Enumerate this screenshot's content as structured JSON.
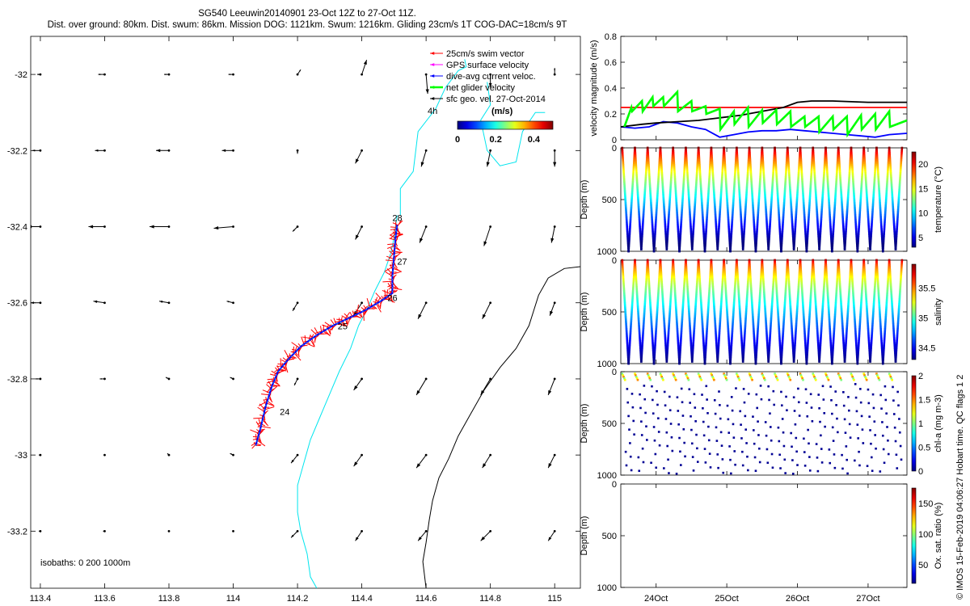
{
  "title": {
    "line1": "SG540 Leeuwin20140901 23-Oct 12Z to 27-Oct 11Z.",
    "line2": "Dist. over ground: 80km. Dist. swum: 86km. Mission DOG: 1121km. Swum: 1216km. Gliding 23cm/s 1T COG-DAC=18cm/s 9T"
  },
  "footer": "© IMOS 15-Feb-2019 04:06:27 Hobart time. QC flags 1  2",
  "colors": {
    "coast": "#00e5ee",
    "isobath": "#000000",
    "swim": "#ff0000",
    "gps": "#ff00ff",
    "dac": "#0000ff",
    "net": "#00ff00",
    "geo": "#000000"
  },
  "chart_data": [
    {
      "type": "scatter",
      "name": "map",
      "xlim": [
        113.37,
        115.08
      ],
      "ylim": [
        -33.35,
        -31.9
      ],
      "x_ticks": [
        113.4,
        113.6,
        113.8,
        114,
        114.2,
        114.4,
        114.6,
        114.8,
        115
      ],
      "x_tick_labels": [
        "113.4",
        "113.6",
        "113.8",
        "114",
        "114.2",
        "114.4",
        "114.6",
        "114.8",
        "115"
      ],
      "y_ticks": [
        -32,
        -32.2,
        -32.4,
        -32.6,
        -32.8,
        -33,
        -33.2
      ],
      "y_tick_labels": [
        "-32",
        "-32.2",
        "-32.4",
        "-32.6",
        "-32.8",
        "-33",
        "-33.2"
      ],
      "legend": {
        "position": "top-right",
        "entries": [
          "25cm/s swim vector",
          "GPS surface velocity",
          "dive-avg current veloc.",
          "net glider velocity",
          "sfc geo. vel. 27-Oct-2014"
        ]
      },
      "colorbar": {
        "time_label": "4h",
        "unit": "(m/s)",
        "ticks": [
          "0",
          "0.2",
          "0.4"
        ],
        "range": [
          0,
          0.5
        ]
      },
      "isobath_label": "isobaths: 0   200  1000m",
      "track": [
        [
          114.07,
          -32.975
        ],
        [
          114.085,
          -32.93
        ],
        [
          114.1,
          -32.875
        ],
        [
          114.12,
          -32.82
        ],
        [
          114.14,
          -32.78
        ],
        [
          114.17,
          -32.75
        ],
        [
          114.21,
          -32.715
        ],
        [
          114.26,
          -32.685
        ],
        [
          114.31,
          -32.66
        ],
        [
          114.36,
          -32.64
        ],
        [
          114.41,
          -32.62
        ],
        [
          114.46,
          -32.595
        ],
        [
          114.495,
          -32.575
        ],
        [
          114.495,
          -32.53
        ],
        [
          114.5,
          -32.48
        ],
        [
          114.505,
          -32.43
        ],
        [
          114.51,
          -32.395
        ]
      ],
      "day_labels": [
        {
          "lon": 114.145,
          "lat": -32.895,
          "label": "24"
        },
        {
          "lon": 114.325,
          "lat": -32.67,
          "label": "25"
        },
        {
          "lon": 114.48,
          "lat": -32.595,
          "label": "26"
        },
        {
          "lon": 114.51,
          "lat": -32.5,
          "label": "27"
        },
        {
          "lon": 114.495,
          "lat": -32.385,
          "label": "28"
        }
      ],
      "coastline_0m": [
        [
          114.52,
          -32.37
        ],
        [
          114.52,
          -32.3
        ],
        [
          114.56,
          -32.255
        ],
        [
          114.575,
          -32.15
        ],
        [
          114.63,
          -32.09
        ],
        [
          114.66,
          -32.035
        ],
        [
          114.7,
          -31.99
        ],
        [
          114.725,
          -31.98
        ],
        [
          114.72,
          -31.96
        ]
      ],
      "coastline_0m_inner": [
        [
          114.51,
          -32.37
        ],
        [
          114.5,
          -32.43
        ],
        [
          114.49,
          -32.47
        ],
        [
          114.47,
          -32.52
        ],
        [
          114.44,
          -32.57
        ],
        [
          114.42,
          -32.61
        ],
        [
          114.39,
          -32.66
        ],
        [
          114.365,
          -32.72
        ],
        [
          114.33,
          -32.78
        ],
        [
          114.3,
          -32.84
        ],
        [
          114.27,
          -32.9
        ],
        [
          114.24,
          -32.96
        ],
        [
          114.22,
          -33.02
        ],
        [
          114.2,
          -33.08
        ],
        [
          114.2,
          -33.15
        ],
        [
          114.21,
          -33.2
        ],
        [
          114.23,
          -33.26
        ],
        [
          114.24,
          -33.32
        ],
        [
          114.26,
          -33.35
        ]
      ],
      "coast_islands": [
        [
          114.79,
          -32.02
        ],
        [
          114.8,
          -32.08
        ],
        [
          114.77,
          -32.12
        ],
        [
          114.79,
          -32.2
        ],
        [
          114.83,
          -32.24
        ],
        [
          114.88,
          -32.23
        ],
        [
          114.9,
          -32.15
        ],
        [
          114.94,
          -32.1
        ],
        [
          114.97,
          -32.1
        ]
      ],
      "isobath_1000": [
        [
          115.08,
          -32.505
        ],
        [
          115.03,
          -32.51
        ],
        [
          114.98,
          -32.535
        ],
        [
          114.95,
          -32.58
        ],
        [
          114.92,
          -32.66
        ],
        [
          114.88,
          -32.72
        ],
        [
          114.83,
          -32.77
        ],
        [
          114.78,
          -32.83
        ],
        [
          114.74,
          -32.89
        ],
        [
          114.7,
          -32.95
        ],
        [
          114.67,
          -33.01
        ],
        [
          114.64,
          -33.06
        ],
        [
          114.62,
          -33.12
        ],
        [
          114.61,
          -33.17
        ],
        [
          114.6,
          -33.23
        ],
        [
          114.59,
          -33.28
        ],
        [
          114.6,
          -33.35
        ]
      ],
      "geo_vectors": {
        "lons": [
          113.4,
          113.6,
          113.8,
          114,
          114.2,
          114.4,
          114.6,
          114.8,
          115
        ],
        "lats": [
          -32,
          -32.2,
          -32.4,
          -32.6,
          -32.8,
          -33,
          -33.2
        ],
        "u": [
          [
            -0.02,
            -0.04,
            -0.03,
            -0.03,
            0.02,
            0.03,
            0.01,
            0,
            0
          ],
          [
            -0.05,
            -0.06,
            -0.08,
            -0.07,
            0,
            -0.04,
            -0.03,
            -0.02,
            0
          ],
          [
            -0.08,
            -0.1,
            -0.12,
            -0.12,
            -0.03,
            -0.04,
            -0.04,
            -0.04,
            -0.02
          ],
          [
            -0.06,
            -0.07,
            -0.06,
            -0.04,
            -0.03,
            -0.05,
            -0.05,
            -0.05,
            -0.03
          ],
          [
            -0.03,
            -0.03,
            -0.02,
            -0.02,
            -0.02,
            -0.05,
            -0.06,
            -0.06,
            -0.04
          ],
          [
            -0.01,
            0,
            -0.01,
            -0.02,
            -0.04,
            -0.05,
            -0.06,
            -0.05,
            -0.04
          ],
          [
            -0.01,
            -0.01,
            0,
            0,
            -0.04,
            -0.04,
            -0.05,
            -0.06,
            -0.04
          ]
        ],
        "v": [
          [
            0,
            0,
            0,
            0,
            0.03,
            0.09,
            -0.12,
            -0.08,
            0.04
          ],
          [
            0,
            0,
            0,
            0,
            -0.02,
            -0.08,
            -0.1,
            -0.1,
            -0.1
          ],
          [
            0,
            0,
            0,
            -0.01,
            -0.03,
            -0.08,
            -0.1,
            -0.12,
            -0.1
          ],
          [
            0,
            0.01,
            0.01,
            0.01,
            -0.05,
            -0.08,
            -0.1,
            -0.1,
            -0.08
          ],
          [
            0,
            0,
            0.01,
            0.01,
            -0.04,
            -0.07,
            -0.1,
            -0.1,
            -0.1
          ],
          [
            0,
            0,
            0.01,
            0.01,
            -0.05,
            -0.07,
            -0.08,
            -0.08,
            -0.08
          ],
          [
            0,
            0,
            0,
            0,
            -0.04,
            -0.06,
            -0.06,
            -0.06,
            -0.06
          ]
        ]
      }
    },
    {
      "type": "line",
      "name": "velocity",
      "ylabel": "velocity magnitude (m/s)",
      "ylim": [
        0,
        0.8
      ],
      "y_ticks": [
        0,
        0.2,
        0.4,
        0.6,
        0.8
      ],
      "y_tick_labels": [
        "0",
        "0.2",
        "0.4",
        "0.6",
        "0.8"
      ],
      "xlim": [
        23.5,
        27.55
      ],
      "series": [
        {
          "color": "red",
          "x": [
            23.5,
            27.55
          ],
          "y": [
            0.25,
            0.25
          ]
        },
        {
          "color": "blue",
          "x": [
            23.5,
            23.7,
            23.9,
            24.1,
            24.3,
            24.5,
            24.7,
            24.9,
            25.1,
            25.3,
            25.5,
            25.7,
            25.9,
            26.1,
            26.3,
            26.5,
            26.7,
            26.9,
            27.1,
            27.3,
            27.55
          ],
          "y": [
            0.1,
            0.09,
            0.1,
            0.14,
            0.13,
            0.1,
            0.08,
            0.02,
            0.04,
            0.06,
            0.07,
            0.07,
            0.08,
            0.07,
            0.06,
            0.05,
            0.04,
            0.03,
            0.02,
            0.04,
            0.05
          ]
        },
        {
          "color": "black",
          "x": [
            23.5,
            23.8,
            24.0,
            24.3,
            24.6,
            24.9,
            25.2,
            25.5,
            25.8,
            26.0,
            26.2,
            26.5,
            27.0,
            27.55
          ],
          "y": [
            0.1,
            0.12,
            0.13,
            0.14,
            0.15,
            0.17,
            0.19,
            0.22,
            0.25,
            0.29,
            0.3,
            0.3,
            0.29,
            0.29
          ]
        },
        {
          "color": "green",
          "x": [
            23.55,
            23.65,
            23.66,
            23.8,
            23.81,
            23.95,
            23.96,
            24.1,
            24.11,
            24.3,
            24.31,
            24.5,
            24.51,
            24.7,
            24.71,
            24.9,
            24.91,
            25.1,
            25.11,
            25.3,
            25.31,
            25.5,
            25.51,
            25.7,
            25.71,
            25.9,
            25.91,
            26.1,
            26.11,
            26.3,
            26.31,
            26.5,
            26.51,
            26.7,
            26.71,
            26.9,
            26.91,
            27.1,
            27.11,
            27.3,
            27.31,
            27.55
          ],
          "y": [
            0.1,
            0.25,
            0.22,
            0.3,
            0.22,
            0.33,
            0.26,
            0.33,
            0.26,
            0.37,
            0.22,
            0.3,
            0.22,
            0.26,
            0.2,
            0.24,
            0.08,
            0.22,
            0.12,
            0.25,
            0.1,
            0.23,
            0.13,
            0.23,
            0.12,
            0.22,
            0.1,
            0.18,
            0.1,
            0.18,
            0.06,
            0.18,
            0.08,
            0.18,
            0.04,
            0.19,
            0.08,
            0.2,
            0.08,
            0.22,
            0.1,
            0.15
          ]
        }
      ]
    },
    {
      "type": "scatter",
      "name": "temperature",
      "ylabel": "Depth (m)",
      "clabel": "temperature (°C)",
      "ylim": [
        1000,
        0
      ],
      "y_tick_labels": [
        "0",
        "500",
        "1000"
      ],
      "cticks": [
        5,
        10,
        15,
        20
      ],
      "crange": [
        3,
        22.5
      ],
      "dives": 22
    },
    {
      "type": "scatter",
      "name": "salinity",
      "ylabel": "Depth (m)",
      "clabel": "salinity",
      "ylim": [
        1000,
        0
      ],
      "y_tick_labels": [
        "0",
        "500",
        "1000"
      ],
      "cticks": [
        34.5,
        35,
        35.5
      ],
      "crange": [
        34.3,
        35.9
      ],
      "dives": 22
    },
    {
      "type": "scatter",
      "name": "chl",
      "ylabel": "Depth (m)",
      "clabel": "chl-a (mg m-3)",
      "ylim": [
        1000,
        0
      ],
      "y_tick_labels": [
        "0",
        "500",
        "1000"
      ],
      "cticks": [
        0,
        0.5,
        1,
        1.5,
        2
      ],
      "crange": [
        0,
        2
      ]
    },
    {
      "type": "scatter",
      "name": "oxygen",
      "ylabel": "Depth (m)",
      "clabel": "Ox. sat. ratio (%)",
      "ylim": [
        1000,
        0
      ],
      "y_tick_labels": [
        "0",
        "500",
        "1000"
      ],
      "cticks": [
        50,
        100,
        150
      ],
      "crange": [
        20,
        175
      ],
      "x_ticks": [
        24,
        25,
        26,
        27
      ],
      "x_tick_labels": [
        "24Oct",
        "25Oct",
        "26Oct",
        "27Oct"
      ]
    }
  ]
}
